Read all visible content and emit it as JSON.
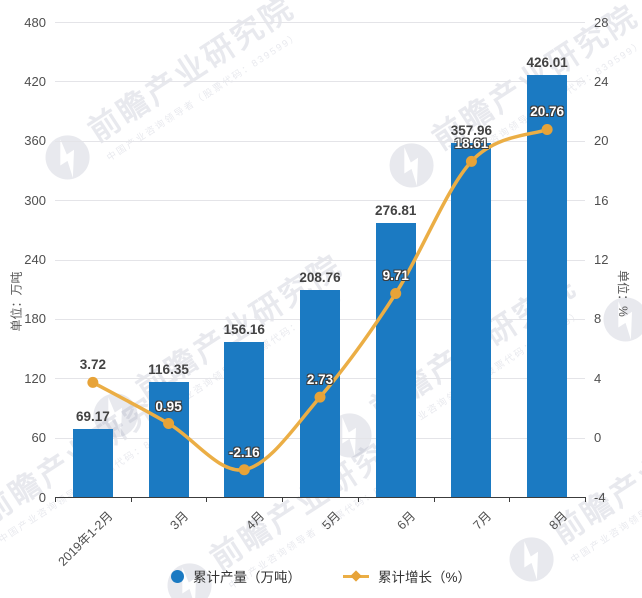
{
  "chart_data": {
    "type": "bar",
    "subtype": "bar-line-combo",
    "title": "",
    "categories": [
      "2019年1-2月",
      "3月",
      "4月",
      "5月",
      "6月",
      "7月",
      "8月"
    ],
    "series": [
      {
        "name": "累计产量（万吨）",
        "type": "bar",
        "axis": "left",
        "values": [
          69.17,
          116.35,
          156.16,
          208.76,
          276.81,
          357.96,
          426.01
        ],
        "color": "#1b7ac2"
      },
      {
        "name": "累计增长（%）",
        "type": "line",
        "axis": "right",
        "values": [
          3.72,
          0.95,
          -2.16,
          2.73,
          9.71,
          18.61,
          20.76
        ],
        "color": "#ebae45",
        "marker_color": "#e7a338"
      }
    ],
    "left_axis": {
      "title": "单位：万吨",
      "min": 0,
      "max": 480,
      "ticks": [
        0,
        60,
        120,
        180,
        240,
        300,
        360,
        420,
        480
      ]
    },
    "right_axis": {
      "title": "单位：%",
      "min": -4,
      "max": 28,
      "ticks": [
        -4,
        0,
        4,
        8,
        12,
        16,
        20,
        24,
        28
      ]
    },
    "grid": true,
    "legend_position": "bottom",
    "colors": {
      "grid_line": "#e4e4e8",
      "axis_line": "#3c3c3c",
      "tick_text": "#4f4f4f",
      "data_label": "#434343",
      "data_label_on_bar": "#ffffff"
    }
  },
  "watermark": {
    "main_text": "前瞻产业研究院",
    "sub_text": "中国产业咨询领导者（股票代码：839599）"
  }
}
